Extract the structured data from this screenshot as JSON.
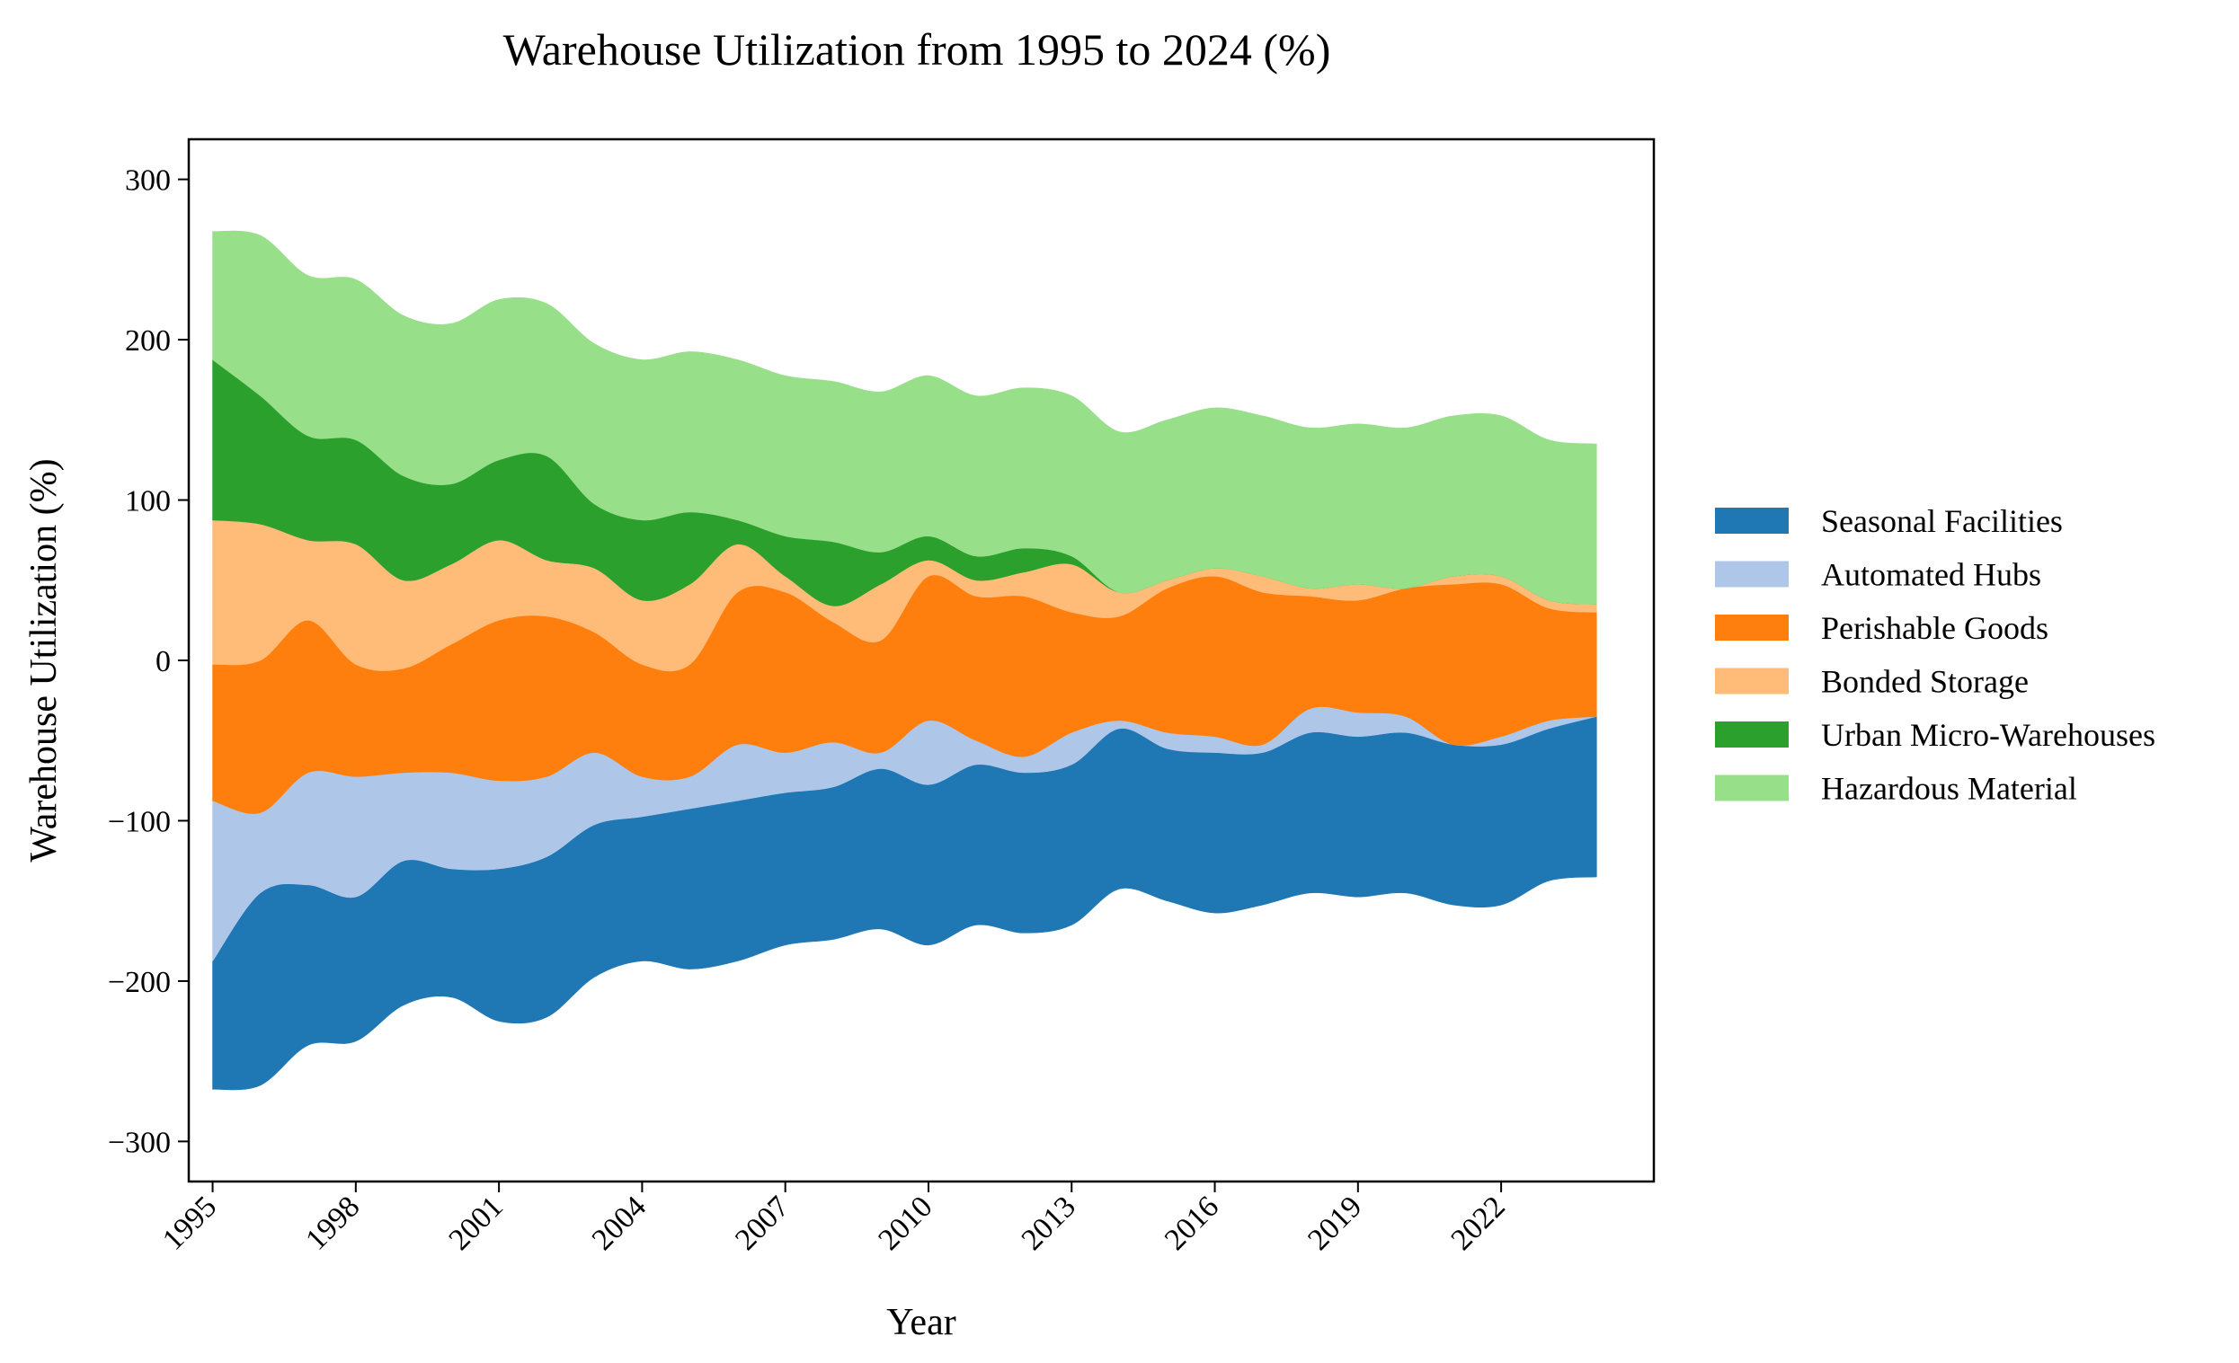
{
  "chart_data": {
    "type": "area",
    "subtype": "streamgraph (symmetric/wiggle baseline)",
    "title": "Warehouse Utilization from 1995 to 2024 (%)",
    "xlabel": "Year",
    "ylabel": "Warehouse Utilization (%)",
    "x": [
      1995,
      1996,
      1997,
      1998,
      1999,
      2000,
      2001,
      2002,
      2003,
      2004,
      2005,
      2006,
      2007,
      2008,
      2009,
      2010,
      2011,
      2012,
      2013,
      2014,
      2015,
      2016,
      2017,
      2018,
      2019,
      2020,
      2021,
      2022,
      2023,
      2024
    ],
    "xticks": [
      1995,
      1998,
      2001,
      2004,
      2007,
      2010,
      2013,
      2016,
      2019,
      2022
    ],
    "xtick_labels": [
      "1995",
      "1998",
      "2001",
      "2004",
      "2007",
      "2010",
      "2013",
      "2016",
      "2019",
      "2022"
    ],
    "yticks": [
      -300,
      -200,
      -100,
      0,
      100,
      200,
      300
    ],
    "ytick_labels": [
      "−300",
      "−200",
      "−100",
      "0",
      "100",
      "200",
      "300"
    ],
    "xlim": [
      1994.5,
      2025.2
    ],
    "ylim": [
      -325,
      325
    ],
    "grid": false,
    "legend_position": "right, outside plot",
    "series": [
      {
        "name": "Seasonal Facilities",
        "color": "#1f77b4",
        "values": [
          80,
          120,
          100,
          90,
          90,
          80,
          95,
          100,
          95,
          90,
          100,
          100,
          95,
          95,
          100,
          100,
          100,
          100,
          100,
          100,
          95,
          100,
          95,
          100,
          100,
          100,
          100,
          100,
          95,
          100
        ]
      },
      {
        "name": "Automated Hubs",
        "color": "#aec7e8",
        "values": [
          100,
          50,
          70,
          75,
          55,
          60,
          55,
          50,
          45,
          25,
          20,
          35,
          25,
          28,
          10,
          40,
          15,
          10,
          20,
          5,
          10,
          10,
          5,
          15,
          15,
          10,
          0,
          5,
          5,
          0
        ]
      },
      {
        "name": "Perishable Goods",
        "color": "#ff7f0e",
        "values": [
          85,
          95,
          95,
          70,
          65,
          80,
          100,
          100,
          75,
          70,
          70,
          95,
          100,
          75,
          70,
          90,
          90,
          100,
          75,
          65,
          90,
          100,
          95,
          70,
          70,
          80,
          100,
          95,
          70,
          65
        ]
      },
      {
        "name": "Bonded Storage",
        "color": "#ffbb78",
        "values": [
          90,
          85,
          50,
          75,
          55,
          50,
          50,
          35,
          40,
          40,
          50,
          30,
          10,
          10,
          35,
          10,
          10,
          15,
          30,
          15,
          5,
          5,
          10,
          5,
          10,
          0,
          5,
          5,
          5,
          5
        ]
      },
      {
        "name": "Urban Micro-Warehouses",
        "color": "#2ca02c",
        "values": [
          100,
          80,
          65,
          65,
          65,
          50,
          50,
          65,
          40,
          50,
          45,
          15,
          25,
          40,
          20,
          15,
          15,
          15,
          5,
          0,
          0,
          0,
          0,
          0,
          0,
          0,
          0,
          0,
          0,
          0
        ]
      },
      {
        "name": "Hazardous Material",
        "color": "#98df8a",
        "values": [
          80,
          100,
          100,
          100,
          100,
          100,
          100,
          95,
          100,
          100,
          100,
          100,
          100,
          100,
          100,
          100,
          100,
          100,
          100,
          100,
          100,
          100,
          100,
          100,
          100,
          100,
          100,
          100,
          100,
          100
        ]
      }
    ]
  }
}
